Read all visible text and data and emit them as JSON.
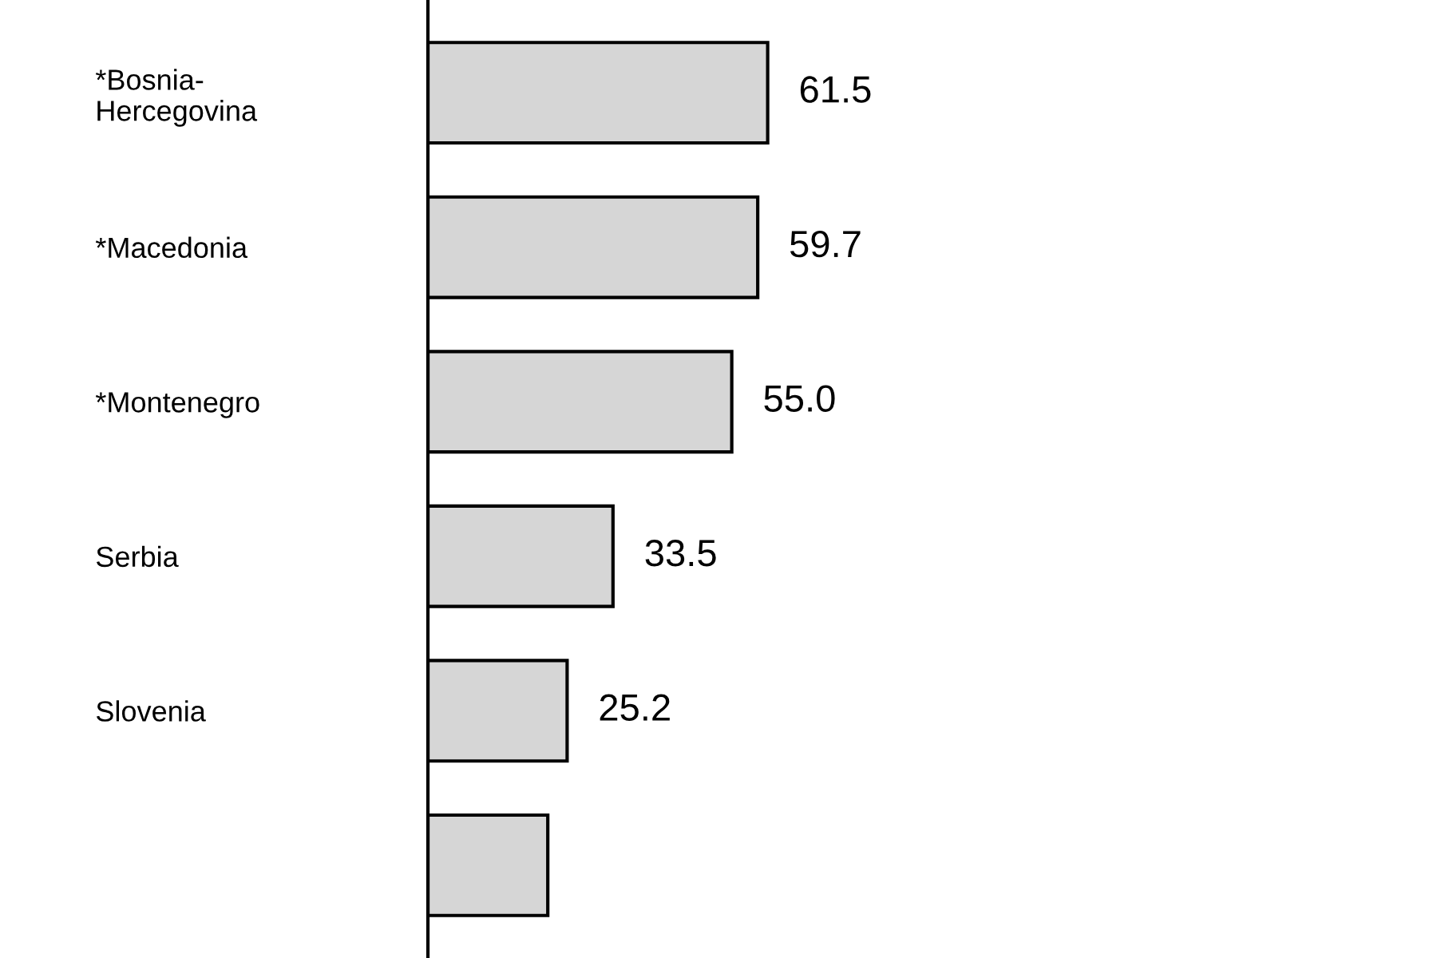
{
  "chart_data": {
    "type": "bar",
    "orientation": "horizontal",
    "categories": [
      "*Bosnia-\nHercegovina",
      "*Macedonia",
      "*Montenegro",
      "Serbia",
      "Slovenia",
      null
    ],
    "values": [
      61.5,
      59.7,
      55.0,
      33.5,
      25.2,
      21.7
    ],
    "value_labels": [
      "61.5",
      "59.7",
      "55.0",
      "33.5",
      "25.2",
      null
    ],
    "color": "#d6d6d6",
    "grid": false,
    "legend": false
  }
}
